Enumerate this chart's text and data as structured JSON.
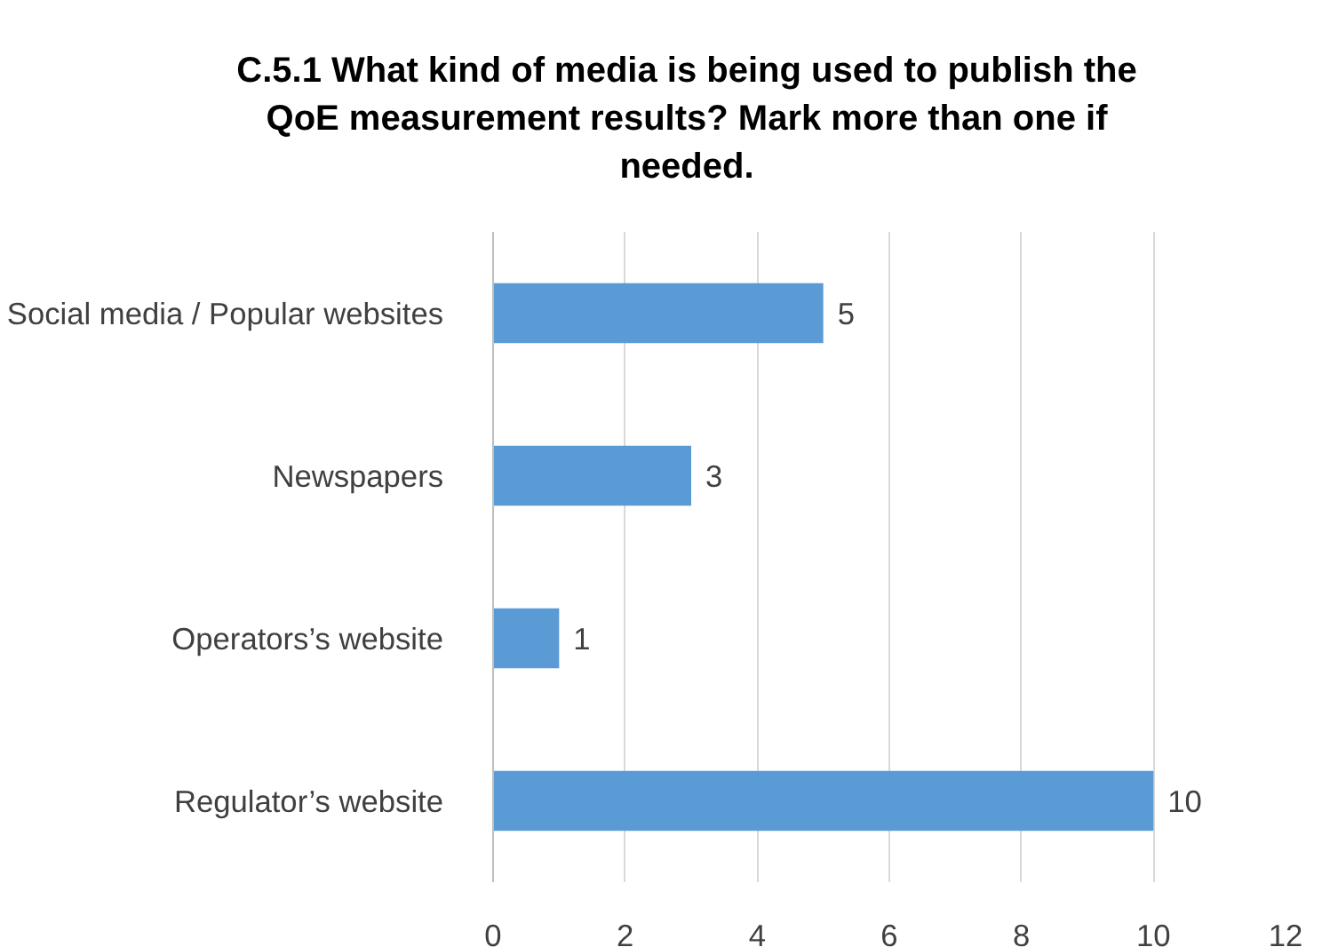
{
  "chart_data": {
    "type": "bar",
    "orientation": "horizontal",
    "title": "C.5.1 What kind of media is being used to publish the QoE measurement results? Mark more than one if needed.",
    "categories": [
      "Social media / Popular websites",
      "Newspapers",
      "Operators’s website",
      "Regulator’s website"
    ],
    "values": [
      5,
      3,
      1,
      10
    ],
    "color": "#5b9bd5",
    "xlim": [
      0,
      12
    ],
    "xticks": [
      0,
      2,
      4,
      6,
      8,
      10,
      12
    ],
    "grid": "x",
    "data_labels": true
  }
}
